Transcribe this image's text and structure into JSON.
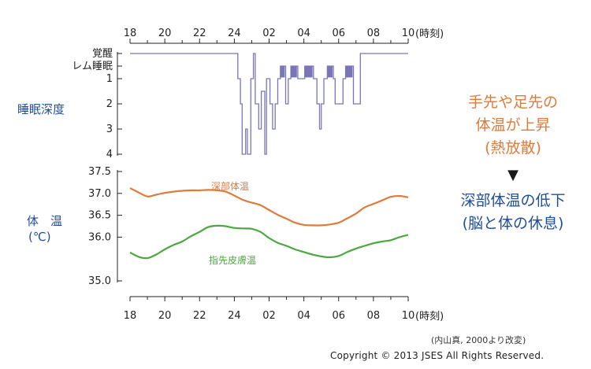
{
  "chart_data": [
    {
      "type": "line",
      "subtype": "step",
      "title": "",
      "ylabel": "睡眠深度",
      "xlabel": "時刻",
      "x_ticks": [
        "18",
        "20",
        "22",
        "24",
        "02",
        "04",
        "06",
        "08",
        "10"
      ],
      "x_unit": "(時刻)",
      "xlim": [
        18,
        34
      ],
      "y_ticks": [
        "覚醒",
        "レム睡眠",
        "1",
        "2",
        "3",
        "4"
      ],
      "y_levels": {
        "覚醒": 0,
        "レム睡眠": 0.5,
        "1": 1,
        "2": 2,
        "3": 3,
        "4": 4
      },
      "ylim": [
        0,
        4
      ],
      "series": [
        {
          "name": "睡眠深度",
          "color": "#7b75b8",
          "points": [
            [
              18.0,
              0
            ],
            [
              24.1,
              0
            ],
            [
              24.2,
              1
            ],
            [
              24.3,
              1
            ],
            [
              24.35,
              2
            ],
            [
              24.4,
              2
            ],
            [
              24.45,
              4
            ],
            [
              24.6,
              4
            ],
            [
              24.65,
              3
            ],
            [
              24.7,
              3
            ],
            [
              24.75,
              4
            ],
            [
              24.9,
              4
            ],
            [
              24.95,
              1
            ],
            [
              25.05,
              1
            ],
            [
              25.1,
              0
            ],
            [
              25.15,
              0
            ],
            [
              25.2,
              2
            ],
            [
              25.35,
              2
            ],
            [
              25.4,
              3
            ],
            [
              25.5,
              3
            ],
            [
              25.55,
              1.5
            ],
            [
              25.7,
              1.5
            ],
            [
              25.75,
              4
            ],
            [
              25.8,
              4
            ],
            [
              25.85,
              1
            ],
            [
              26.0,
              1
            ],
            [
              26.05,
              2
            ],
            [
              26.15,
              2
            ],
            [
              26.2,
              3
            ],
            [
              26.3,
              3
            ],
            [
              26.35,
              2
            ],
            [
              26.45,
              2
            ],
            [
              26.5,
              1
            ],
            [
              26.6,
              1
            ],
            [
              26.65,
              0.5
            ],
            [
              26.9,
              0.5
            ],
            [
              26.95,
              2
            ],
            [
              27.05,
              2
            ],
            [
              27.1,
              1
            ],
            [
              27.2,
              1
            ],
            [
              27.25,
              0.5
            ],
            [
              27.6,
              0.5
            ],
            [
              27.65,
              1
            ],
            [
              28.0,
              1
            ],
            [
              28.05,
              0.5
            ],
            [
              28.5,
              0.5
            ],
            [
              28.55,
              1
            ],
            [
              28.7,
              1
            ],
            [
              28.75,
              2
            ],
            [
              28.85,
              2
            ],
            [
              28.9,
              3
            ],
            [
              28.95,
              3
            ],
            [
              29.0,
              2
            ],
            [
              29.1,
              2
            ],
            [
              29.15,
              1
            ],
            [
              29.3,
              1
            ],
            [
              29.35,
              0.5
            ],
            [
              29.65,
              0.5
            ],
            [
              29.7,
              1
            ],
            [
              29.75,
              1
            ],
            [
              29.8,
              2
            ],
            [
              30.2,
              2
            ],
            [
              30.25,
              1
            ],
            [
              30.35,
              1
            ],
            [
              30.4,
              0.5
            ],
            [
              30.8,
              0.5
            ],
            [
              30.85,
              2
            ],
            [
              31.2,
              2
            ],
            [
              31.25,
              0
            ],
            [
              34.0,
              0
            ]
          ],
          "rem_periods": [
            [
              26.65,
              26.9
            ],
            [
              27.25,
              27.6
            ],
            [
              28.05,
              28.5
            ],
            [
              29.35,
              29.65
            ],
            [
              30.4,
              30.8
            ]
          ]
        }
      ]
    },
    {
      "type": "line",
      "title": "",
      "ylabel": "体　温",
      "ylabel_unit": "(℃)",
      "xlabel": "時刻",
      "x_ticks": [
        "18",
        "20",
        "22",
        "24",
        "02",
        "04",
        "06",
        "08",
        "10"
      ],
      "x_unit": "(時刻)",
      "xlim": [
        18,
        34
      ],
      "y_ticks": [
        "37.5",
        "37.0",
        "36.5",
        "36.0",
        "35.0"
      ],
      "ylim": [
        35.0,
        37.5
      ],
      "series": [
        {
          "name": "深部体温",
          "color": "#e07a3a",
          "x": [
            18.0,
            18.5,
            19.0,
            19.5,
            20.0,
            20.5,
            21.0,
            21.5,
            22.0,
            22.5,
            23.0,
            23.5,
            24.0,
            24.5,
            25.0,
            25.5,
            26.0,
            26.5,
            27.0,
            27.5,
            28.0,
            28.5,
            29.0,
            29.5,
            30.0,
            30.5,
            31.0,
            31.5,
            32.0,
            32.5,
            33.0,
            33.5,
            34.0
          ],
          "values": [
            37.12,
            37.02,
            36.93,
            36.97,
            37.01,
            37.04,
            37.06,
            37.07,
            37.07,
            37.08,
            37.07,
            37.04,
            36.95,
            36.85,
            36.79,
            36.73,
            36.62,
            36.51,
            36.42,
            36.33,
            36.28,
            36.27,
            36.27,
            36.29,
            36.33,
            36.43,
            36.54,
            36.68,
            36.76,
            36.84,
            36.92,
            36.94,
            36.91
          ]
        },
        {
          "name": "指先皮膚温",
          "color": "#4aa83f",
          "x": [
            18.0,
            18.5,
            19.0,
            19.5,
            20.0,
            20.5,
            21.0,
            21.5,
            22.0,
            22.5,
            23.0,
            23.5,
            24.0,
            24.5,
            25.0,
            25.5,
            26.0,
            26.5,
            27.0,
            27.5,
            28.0,
            28.5,
            29.0,
            29.5,
            30.0,
            30.5,
            31.0,
            31.5,
            32.0,
            32.5,
            33.0,
            33.5,
            34.0
          ],
          "values": [
            35.65,
            35.55,
            35.52,
            35.6,
            35.72,
            35.82,
            35.9,
            36.02,
            36.12,
            36.23,
            36.26,
            36.25,
            36.21,
            36.2,
            36.19,
            36.12,
            35.98,
            35.87,
            35.8,
            35.72,
            35.66,
            35.6,
            35.56,
            35.54,
            35.57,
            35.66,
            35.74,
            35.8,
            35.86,
            35.9,
            35.93,
            36.0,
            36.05
          ]
        }
      ]
    }
  ],
  "labels": {
    "sleep_depth": "睡眠深度",
    "body_temp": "体　温",
    "body_temp_unit": "(℃)",
    "time_unit": "(時刻)",
    "core_temp": "深部体温",
    "skin_temp": "指先皮膚温",
    "side_orange_1": "手先や足先の",
    "side_orange_2": "体温が上昇",
    "side_orange_3": "(熱放散)",
    "arrow": "▼",
    "side_blue_1": "深部体温の低下",
    "side_blue_2": "(脳と体の休息)",
    "source": "(内山真, 2000より改変)",
    "copyright": "Copyright © 2013 JSES All Rights Reserved."
  },
  "colors": {
    "sleep": "#7b75b8",
    "core": "#e07a3a",
    "skin": "#4aa83f",
    "blue_text": "#1f4e9c",
    "orange_text": "#e07a3a"
  }
}
